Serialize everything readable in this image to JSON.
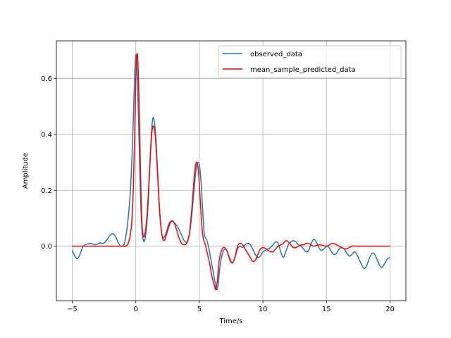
{
  "chart_data": {
    "type": "line",
    "title": "",
    "xlabel": "Time/s",
    "ylabel": "Amplitude",
    "xlim": [
      -6.25,
      21.25
    ],
    "ylim": [
      -0.195,
      0.735
    ],
    "xticks": [
      -5,
      0,
      5,
      10,
      15,
      20
    ],
    "yticks": [
      0.0,
      0.2,
      0.4,
      0.6
    ],
    "xtick_labels": [
      "−5",
      "0",
      "5",
      "10",
      "15",
      "20"
    ],
    "ytick_labels": [
      "0.0",
      "0.2",
      "0.4",
      "0.6"
    ],
    "grid": true,
    "legend_position": "upper-right",
    "series": [
      {
        "name": "observed_data",
        "color": "#1f77b4",
        "x": [
          -5.0,
          -4.8,
          -4.6,
          -4.4,
          -4.2,
          -4.0,
          -3.8,
          -3.6,
          -3.4,
          -3.2,
          -3.0,
          -2.8,
          -2.6,
          -2.4,
          -2.2,
          -2.0,
          -1.8,
          -1.6,
          -1.4,
          -1.2,
          -1.0,
          -0.9,
          -0.8,
          -0.7,
          -0.6,
          -0.5,
          -0.4,
          -0.3,
          -0.2,
          -0.1,
          0.0,
          0.1,
          0.2,
          0.3,
          0.4,
          0.5,
          0.6,
          0.7,
          0.8,
          0.9,
          1.0,
          1.1,
          1.2,
          1.3,
          1.4,
          1.5,
          1.6,
          1.7,
          1.8,
          1.9,
          2.0,
          2.1,
          2.2,
          2.4,
          2.6,
          2.8,
          3.0,
          3.2,
          3.4,
          3.6,
          3.8,
          4.0,
          4.2,
          4.3,
          4.4,
          4.5,
          4.6,
          4.7,
          4.8,
          4.9,
          5.0,
          5.1,
          5.2,
          5.3,
          5.4,
          5.6,
          5.8,
          6.0,
          6.2,
          6.3,
          6.4,
          6.5,
          6.6,
          6.8,
          7.0,
          7.2,
          7.4,
          7.6,
          7.8,
          8.0,
          8.2,
          8.4,
          8.6,
          8.8,
          9.0,
          9.2,
          9.4,
          9.6,
          9.8,
          10.0,
          10.2,
          10.4,
          10.6,
          10.8,
          11.0,
          11.2,
          11.4,
          11.6,
          11.8,
          12.0,
          12.2,
          12.4,
          12.6,
          12.8,
          13.0,
          13.2,
          13.4,
          13.6,
          13.8,
          14.0,
          14.2,
          14.4,
          14.6,
          14.8,
          15.0,
          15.2,
          15.4,
          15.6,
          15.8,
          16.0,
          16.2,
          16.4,
          16.6,
          16.8,
          17.0,
          17.2,
          17.4,
          17.6,
          17.8,
          18.0,
          18.2,
          18.4,
          18.6,
          18.8,
          19.0,
          19.2,
          19.4,
          19.6,
          19.8,
          20.0
        ],
        "y": [
          -0.015,
          -0.035,
          -0.045,
          -0.03,
          -0.005,
          0.005,
          0.008,
          0.01,
          0.008,
          0.005,
          0.008,
          0.012,
          0.01,
          0.015,
          0.028,
          0.04,
          0.045,
          0.035,
          0.015,
          0.0,
          0.002,
          0.01,
          0.03,
          0.06,
          0.1,
          0.15,
          0.22,
          0.32,
          0.45,
          0.6,
          0.685,
          0.62,
          0.48,
          0.3,
          0.14,
          0.05,
          0.02,
          0.02,
          0.05,
          0.1,
          0.18,
          0.28,
          0.38,
          0.445,
          0.46,
          0.43,
          0.37,
          0.28,
          0.19,
          0.11,
          0.06,
          0.035,
          0.03,
          0.05,
          0.08,
          0.09,
          0.085,
          0.075,
          0.06,
          0.04,
          0.02,
          0.015,
          0.04,
          0.07,
          0.11,
          0.16,
          0.21,
          0.26,
          0.29,
          0.3,
          0.29,
          0.25,
          0.18,
          0.1,
          0.04,
          0.02,
          -0.02,
          -0.07,
          -0.12,
          -0.15,
          -0.155,
          -0.13,
          -0.08,
          -0.03,
          -0.01,
          -0.02,
          -0.05,
          -0.06,
          -0.04,
          -0.01,
          0.0,
          -0.005,
          0.005,
          0.01,
          0.005,
          -0.01,
          -0.03,
          -0.04,
          -0.035,
          -0.02,
          -0.015,
          -0.01,
          -0.005,
          0.005,
          0.015,
          0.01,
          -0.02,
          -0.04,
          -0.02,
          0.005,
          0.015,
          0.02,
          0.015,
          0.005,
          0.0,
          -0.01,
          -0.02,
          -0.015,
          0.01,
          0.025,
          0.015,
          -0.005,
          -0.015,
          -0.01,
          0.0,
          -0.005,
          -0.02,
          -0.03,
          -0.025,
          -0.01,
          -0.005,
          -0.01,
          -0.025,
          -0.035,
          -0.03,
          -0.02,
          -0.03,
          -0.05,
          -0.07,
          -0.08,
          -0.065,
          -0.04,
          -0.025,
          -0.03,
          -0.05,
          -0.07,
          -0.075,
          -0.06,
          -0.045,
          -0.04
        ]
      },
      {
        "name": "mean_sample_predicted_data",
        "color": "#ff0000",
        "x": [
          -5.0,
          -4.0,
          -3.0,
          -2.0,
          -1.0,
          -0.8,
          -0.6,
          -0.4,
          -0.3,
          -0.2,
          -0.1,
          0.0,
          0.1,
          0.2,
          0.3,
          0.4,
          0.5,
          0.6,
          0.7,
          0.8,
          0.9,
          1.0,
          1.1,
          1.2,
          1.3,
          1.4,
          1.5,
          1.6,
          1.7,
          1.8,
          1.9,
          2.0,
          2.1,
          2.2,
          2.3,
          2.4,
          2.6,
          2.8,
          3.0,
          3.2,
          3.4,
          3.6,
          3.8,
          4.0,
          4.2,
          4.3,
          4.4,
          4.5,
          4.6,
          4.7,
          4.8,
          4.9,
          5.0,
          5.1,
          5.2,
          5.3,
          5.4,
          5.5,
          5.6,
          5.8,
          6.0,
          6.2,
          6.3,
          6.4,
          6.5,
          6.6,
          6.8,
          7.0,
          7.2,
          7.4,
          7.6,
          7.8,
          8.0,
          8.2,
          8.4,
          8.6,
          8.8,
          9.0,
          9.2,
          9.4,
          9.6,
          9.8,
          10.0,
          10.2,
          10.4,
          10.6,
          10.8,
          11.0,
          11.2,
          11.4,
          11.6,
          11.8,
          12.0,
          12.2,
          12.4,
          12.6,
          12.8,
          13.0,
          13.2,
          13.4,
          13.6,
          13.8,
          14.0,
          14.5,
          15.0,
          15.5,
          16.0,
          16.5,
          17.0,
          17.5,
          18.0,
          18.5,
          19.0,
          19.5,
          20.0
        ],
        "y": [
          0.0,
          0.0,
          0.0,
          0.0,
          0.0,
          0.0,
          0.01,
          0.05,
          0.1,
          0.2,
          0.38,
          0.6,
          0.69,
          0.62,
          0.42,
          0.2,
          0.07,
          0.035,
          0.04,
          0.07,
          0.12,
          0.2,
          0.29,
          0.37,
          0.42,
          0.43,
          0.41,
          0.35,
          0.27,
          0.18,
          0.11,
          0.06,
          0.03,
          0.02,
          0.025,
          0.04,
          0.07,
          0.09,
          0.085,
          0.06,
          0.03,
          0.01,
          0.005,
          0.01,
          0.04,
          0.08,
          0.13,
          0.19,
          0.25,
          0.29,
          0.3,
          0.28,
          0.22,
          0.14,
          0.07,
          0.03,
          0.015,
          0.0,
          -0.02,
          -0.06,
          -0.11,
          -0.145,
          -0.155,
          -0.13,
          -0.08,
          -0.04,
          -0.01,
          -0.005,
          -0.02,
          -0.045,
          -0.06,
          -0.04,
          0.0,
          0.01,
          0.005,
          -0.01,
          -0.025,
          -0.04,
          -0.055,
          -0.05,
          -0.03,
          -0.01,
          -0.005,
          -0.008,
          -0.015,
          -0.02,
          -0.02,
          -0.01,
          0.0,
          0.005,
          0.01,
          0.02,
          0.015,
          0.005,
          -0.005,
          -0.005,
          0.0,
          0.005,
          0.005,
          0.01,
          0.01,
          0.005,
          0.0,
          0.005,
          0.0,
          0.01,
          0.0,
          -0.01,
          0.0,
          0.0,
          0.0,
          0.0,
          0.0,
          0.0,
          0.0
        ]
      }
    ]
  }
}
